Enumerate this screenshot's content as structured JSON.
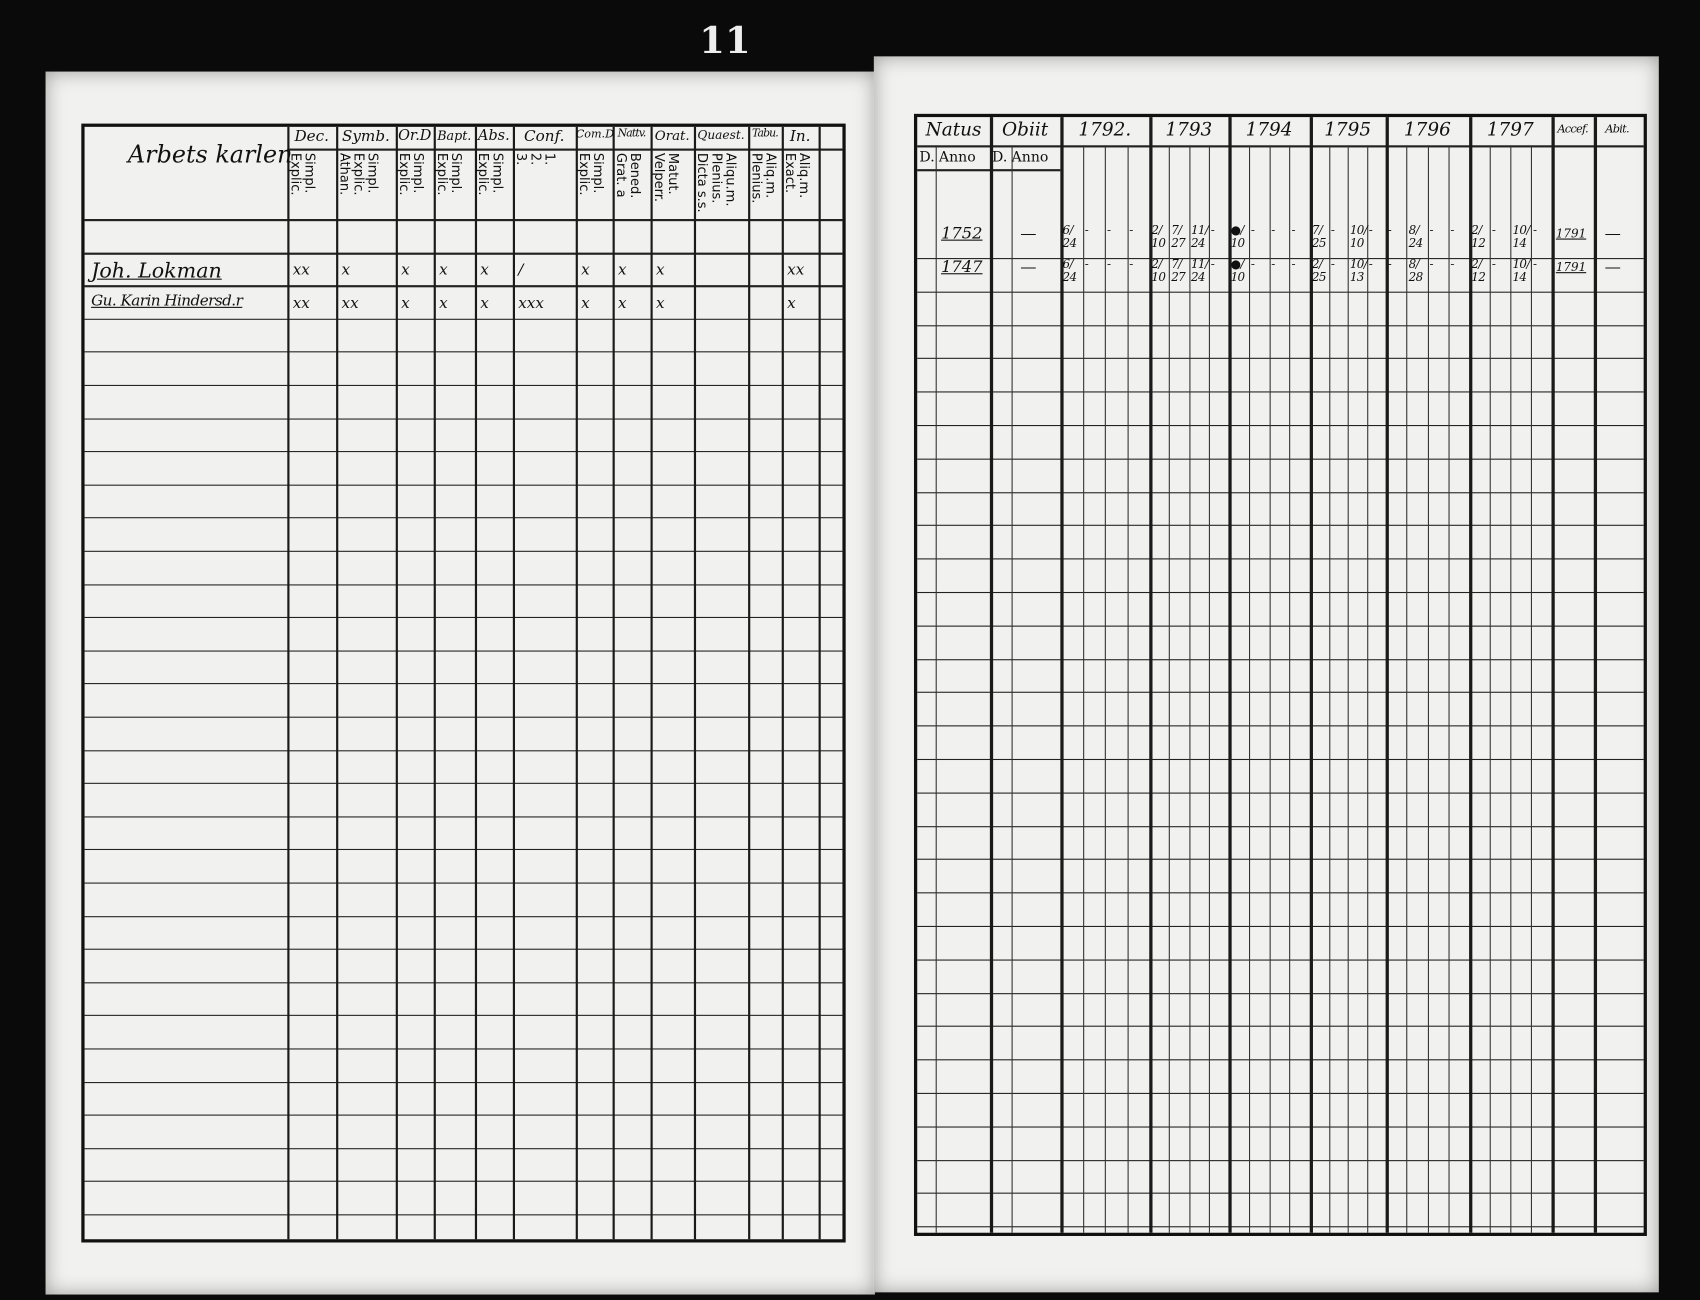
{
  "page_number": "11",
  "left_page": {
    "heading": "Arbets karlen",
    "column_groups": [
      {
        "label": "Dec.",
        "sub": [
          "Explic.",
          "Simpl."
        ]
      },
      {
        "label": "Symb.",
        "sub": [
          "Athan.",
          "Explic.",
          "Simpl."
        ]
      },
      {
        "label": "Or.D",
        "sub": [
          "Explic.",
          "Simpl."
        ]
      },
      {
        "label": "Bapt.",
        "sub": [
          "Explic.",
          "Simpl."
        ]
      },
      {
        "label": "Abs.",
        "sub": [
          "Explic.",
          "Simpl."
        ]
      },
      {
        "label": "Conf.",
        "sub": [
          "3.",
          "2.",
          "1."
        ]
      },
      {
        "label": "Com.D",
        "sub": [
          "Explic.",
          "Simpl."
        ]
      },
      {
        "label": "Nattv.",
        "sub": [
          "Grat. a",
          "Bened."
        ]
      },
      {
        "label": "Orat.",
        "sub": [
          "Velperr.",
          "Matut."
        ]
      },
      {
        "label": "Quaest.",
        "sub": [
          "Dicta s.s.",
          "Plenius.",
          "Aliqu.m."
        ]
      },
      {
        "label": "Tabu.",
        "sub": [
          "Plenius.",
          "Aliq.m."
        ]
      },
      {
        "label": "In.",
        "sub": [
          "Exact.",
          "Aliq.m."
        ]
      }
    ],
    "entries": [
      {
        "name": "Joh. Lokman",
        "marks": [
          "xx",
          "x",
          "x",
          "x",
          "x",
          "/",
          "x",
          "x",
          "x",
          "",
          "",
          "xx"
        ]
      },
      {
        "name": "Gu. Karin Hindersd.r",
        "marks": [
          "xx",
          "xx",
          "x",
          "x",
          "x",
          "xxx",
          "x",
          "x",
          "x",
          "",
          "",
          "x"
        ]
      }
    ]
  },
  "right_page": {
    "headers": [
      "Natus",
      "Obiit",
      "1792.",
      "1793",
      "1794",
      "1795",
      "1796",
      "1797",
      "Accef.",
      "Abit."
    ],
    "subheaders": {
      "natus": [
        "D.",
        "Anno"
      ],
      "obiit": [
        "D.",
        "Anno"
      ]
    },
    "entries": [
      {
        "natus_anno": "1752",
        "obiit": "—",
        "years": {
          "1792": [
            "6/24",
            "-",
            "-",
            "-"
          ],
          "1793": [
            "2/10",
            "7/27",
            "11/24",
            "-"
          ],
          "1794": [
            "●/10",
            "-",
            "-",
            "-"
          ],
          "1795": [
            "7/25",
            "-",
            "10/10",
            "-"
          ],
          "1796": [
            "-",
            "8/24",
            "-",
            "-"
          ],
          "1797": [
            "2/12",
            "-",
            "10/14",
            "-"
          ]
        },
        "accef": "1791",
        "abit": "—"
      },
      {
        "natus_anno": "1747",
        "obiit": "—",
        "years": {
          "1792": [
            "6/24",
            "-",
            "-",
            "-"
          ],
          "1793": [
            "2/10",
            "7/27",
            "11/24",
            "-"
          ],
          "1794": [
            "●/10",
            "-",
            "-",
            "-"
          ],
          "1795": [
            "2/25",
            "-",
            "10/13",
            "-"
          ],
          "1796": [
            "-",
            "8/28",
            "-",
            "-"
          ],
          "1797": [
            "2/12",
            "-",
            "10/14",
            "-"
          ]
        },
        "accef": "1791",
        "abit": "—"
      }
    ]
  }
}
